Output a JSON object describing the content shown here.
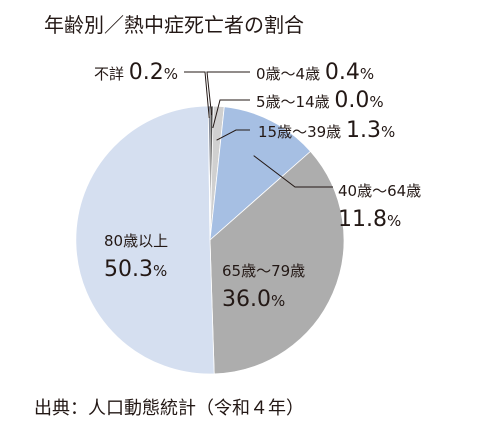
{
  "chart_data": {
    "type": "pie",
    "title": "年齢別／熱中症死亡者の割合",
    "source": "出典：人口動態統計（令和４年）",
    "percent_unit": "%",
    "slices": [
      {
        "label": "0歳〜4歳",
        "value": 0.4,
        "display": "0.4",
        "color": "#4d4d4d"
      },
      {
        "label": "5歳〜14歳",
        "value": 0.0,
        "display": "0.0",
        "color": "#9e9e9e"
      },
      {
        "label": "15歳〜39歳",
        "value": 1.3,
        "display": "1.3",
        "color": "#d0d0d0"
      },
      {
        "label": "40歳〜64歳",
        "value": 11.8,
        "display": "11.8",
        "color": "#a6bfe3"
      },
      {
        "label": "65歳〜79歳",
        "value": 36.0,
        "display": "36.0",
        "color": "#adadad"
      },
      {
        "label": "80歳以上",
        "value": 50.3,
        "display": "50.3",
        "color": "#d5dff0"
      },
      {
        "label": "不詳",
        "value": 0.2,
        "display": "0.2",
        "color": "#2f3a4f"
      }
    ]
  }
}
